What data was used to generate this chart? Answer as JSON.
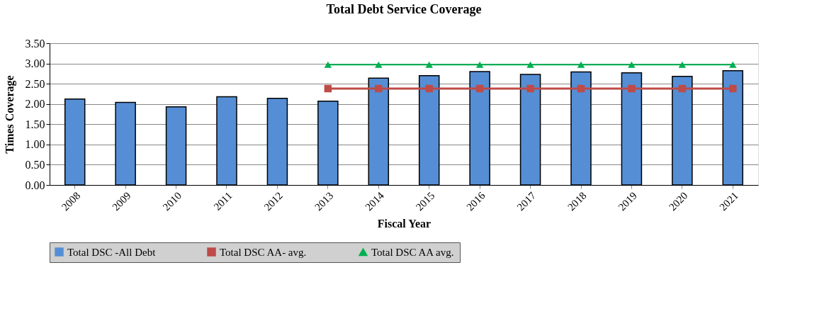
{
  "chart_data": {
    "type": "bar",
    "title": "Total Debt Service Coverage",
    "xlabel": "Fiscal Year",
    "ylabel": "Times Coverage",
    "categories": [
      "2008",
      "2009",
      "2010",
      "2011",
      "2012",
      "2013",
      "2014",
      "2015",
      "2016",
      "2017",
      "2018",
      "2019",
      "2020",
      "2021"
    ],
    "series": [
      {
        "name": "Total DSC -All Debt",
        "color": "#558ed5",
        "values": [
          2.12,
          2.04,
          1.93,
          2.18,
          2.14,
          2.07,
          2.64,
          2.7,
          2.8,
          2.73,
          2.79,
          2.77,
          2.68,
          2.82
        ]
      },
      {
        "name": "Total DSC AA- avg.",
        "type": "line",
        "marker": "square",
        "color": "#be4b48",
        "values": [
          null,
          null,
          null,
          null,
          null,
          2.38,
          2.38,
          2.38,
          2.38,
          2.38,
          2.38,
          2.38,
          2.38,
          2.38
        ]
      },
      {
        "name": "Total DSC AA avg.",
        "type": "line",
        "marker": "triangle",
        "color": "#00b050",
        "values": [
          null,
          null,
          null,
          null,
          null,
          2.97,
          2.97,
          2.97,
          2.97,
          2.97,
          2.97,
          2.97,
          2.97,
          2.97
        ]
      }
    ],
    "ylim": [
      0,
      3.5
    ],
    "yticks": [
      {
        "value": 0,
        "label": "0.00"
      },
      {
        "value": 0.5,
        "label": "0.50"
      },
      {
        "value": 1,
        "label": "1.00"
      },
      {
        "value": 1.5,
        "label": "1.50"
      },
      {
        "value": 2,
        "label": "2.00"
      },
      {
        "value": 2.5,
        "label": "2.50"
      },
      {
        "value": 3,
        "label": "3.00"
      },
      {
        "value": 3.5,
        "label": "3.50"
      }
    ],
    "grid": "y",
    "legend": "bottom",
    "line_style": "solid"
  }
}
